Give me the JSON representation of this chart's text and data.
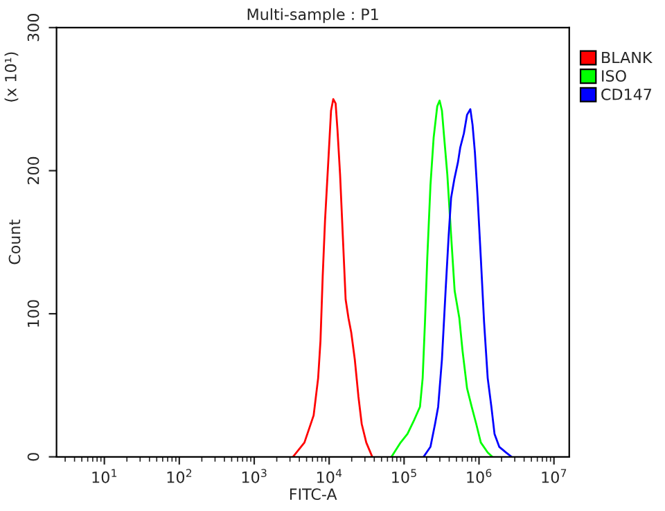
{
  "chart_data": {
    "type": "line",
    "title": "Multi-sample : P1",
    "xlabel": "FITC-A",
    "ylabel": "Count",
    "annotations": [
      "(x 10¹)"
    ],
    "log": "x",
    "xlim": [
      2.3,
      16000000
    ],
    "xticks": [
      {
        "value": 10,
        "label": "10$^{1}$"
      },
      {
        "value": 100,
        "label": "10$^{2}$"
      },
      {
        "value": 1000,
        "label": "10$^{3}$"
      },
      {
        "value": 10000,
        "label": "10$^{4}$"
      },
      {
        "value": 100000,
        "label": "10$^{5}$"
      },
      {
        "value": 1000000,
        "label": "10$^{6}$"
      },
      {
        "value": 10000000,
        "label": "10$^{7}$"
      }
    ],
    "ylim": [
      0,
      300
    ],
    "yticks": [
      0,
      100,
      200,
      300
    ],
    "grid": false,
    "legend": "top right",
    "line_style": "solid",
    "marker": "none",
    "series": [
      {
        "name": "BLANK",
        "color": "#ff0000",
        "x": [
          3290,
          4680,
          6210,
          7130,
          7660,
          8200,
          8810,
          9730,
          10600,
          11350,
          12200,
          12900,
          14000,
          15200,
          16600,
          18100,
          19700,
          22000,
          24600,
          27200,
          31300,
          37600
        ],
        "values": [
          0,
          10,
          29,
          55,
          81,
          126,
          165,
          206,
          242,
          250,
          247,
          229,
          197,
          155,
          110,
          97,
          87,
          68,
          42,
          23,
          10,
          0
        ]
      },
      {
        "name": "ISO",
        "color": "#00ff00",
        "x": [
          67900,
          89900,
          111000,
          137000,
          163000,
          177000,
          190000,
          204000,
          225000,
          248000,
          277000,
          298000,
          320000,
          343000,
          378000,
          424000,
          473000,
          546000,
          603000,
          692000,
          798000,
          918000,
          1057000,
          1306000,
          1507000
        ],
        "values": [
          0,
          10,
          16,
          26,
          35,
          55,
          94,
          139,
          190,
          223,
          245,
          249,
          242,
          223,
          197,
          155,
          116,
          97,
          74,
          48,
          35,
          23,
          10,
          3,
          0
        ]
      },
      {
        "name": "CD147",
        "color": "#0000ff",
        "x": [
          182000,
          225000,
          259000,
          285000,
          320000,
          358000,
          394000,
          424000,
          468000,
          524000,
          561000,
          628000,
          692000,
          766000,
          820000,
          881000,
          959000,
          1057000,
          1169000,
          1306000,
          1462000,
          1611000,
          1862000,
          2301000,
          2723000
        ],
        "values": [
          0,
          7,
          23,
          35,
          68,
          116,
          155,
          181,
          194,
          206,
          216,
          226,
          239,
          243,
          232,
          213,
          181,
          139,
          94,
          55,
          35,
          16,
          7,
          3,
          0
        ]
      }
    ]
  }
}
